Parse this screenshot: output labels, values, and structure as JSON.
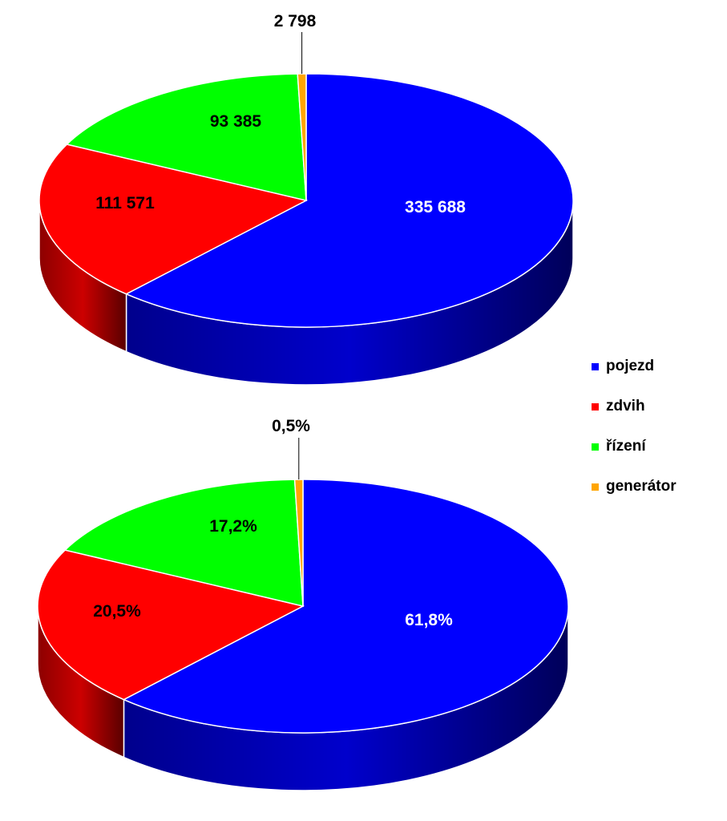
{
  "chart_data": [
    {
      "type": "pie",
      "style": "3d",
      "categories": [
        "pojezd",
        "zdvih",
        "řízení",
        "generátor"
      ],
      "values": [
        335688,
        111571,
        93385,
        2798
      ],
      "labels": [
        "335 688",
        "111 571",
        "93 385",
        "2 798"
      ],
      "colors": [
        "#0000ff",
        "#ff0000",
        "#00ff00",
        "#ffa500"
      ]
    },
    {
      "type": "pie",
      "style": "3d",
      "categories": [
        "pojezd",
        "zdvih",
        "řízení",
        "generátor"
      ],
      "values": [
        61.8,
        20.5,
        17.2,
        0.5
      ],
      "labels": [
        "61,8%",
        "20,5%",
        "17,2%",
        "0,5%"
      ],
      "colors": [
        "#0000ff",
        "#ff0000",
        "#00ff00",
        "#ffa500"
      ]
    }
  ],
  "legend": {
    "position": "right",
    "items": [
      {
        "label": "pojezd",
        "color": "#0000ff"
      },
      {
        "label": "zdvih",
        "color": "#ff0000"
      },
      {
        "label": "řízení",
        "color": "#00ff00"
      },
      {
        "label": "generátor",
        "color": "#ffa500"
      }
    ]
  }
}
